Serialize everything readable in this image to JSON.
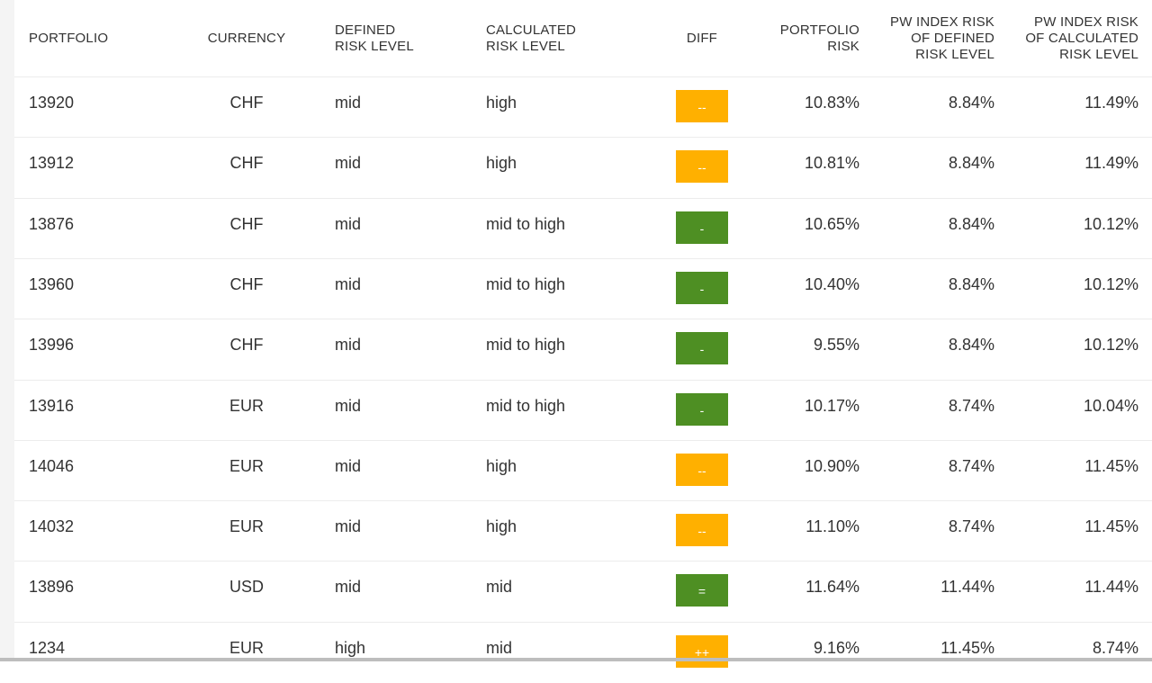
{
  "table": {
    "headers": [
      [
        "PORTFOLIO"
      ],
      [
        "CURRENCY"
      ],
      [
        "DEFINED",
        "RISK LEVEL"
      ],
      [
        "CALCULATED",
        "RISK LEVEL"
      ],
      [
        "DIFF"
      ],
      [
        "PORTFOLIO",
        "RISK"
      ],
      [
        "PW INDEX RISK",
        "OF DEFINED",
        "RISK LEVEL"
      ],
      [
        "PW INDEX RISK",
        "OF CALCULATED",
        "RISK LEVEL"
      ]
    ],
    "rows": [
      [
        "13920",
        "CHF",
        "mid",
        "high",
        {
          "label": "--",
          "color": "#ffb000"
        },
        "10.83%",
        "8.84%",
        "11.49%"
      ],
      [
        "13912",
        "CHF",
        "mid",
        "high",
        {
          "label": "--",
          "color": "#ffb000"
        },
        "10.81%",
        "8.84%",
        "11.49%"
      ],
      [
        "13876",
        "CHF",
        "mid",
        "mid to high",
        {
          "label": "-",
          "color": "#4e8f23"
        },
        "10.65%",
        "8.84%",
        "10.12%"
      ],
      [
        "13960",
        "CHF",
        "mid",
        "mid to high",
        {
          "label": "-",
          "color": "#4e8f23"
        },
        "10.40%",
        "8.84%",
        "10.12%"
      ],
      [
        "13996",
        "CHF",
        "mid",
        "mid to high",
        {
          "label": "-",
          "color": "#4e8f23"
        },
        "9.55%",
        "8.84%",
        "10.12%"
      ],
      [
        "13916",
        "EUR",
        "mid",
        "mid to high",
        {
          "label": "-",
          "color": "#4e8f23"
        },
        "10.17%",
        "8.74%",
        "10.04%"
      ],
      [
        "14046",
        "EUR",
        "mid",
        "high",
        {
          "label": "--",
          "color": "#ffb000"
        },
        "10.90%",
        "8.74%",
        "11.45%"
      ],
      [
        "14032",
        "EUR",
        "mid",
        "high",
        {
          "label": "--",
          "color": "#ffb000"
        },
        "11.10%",
        "8.74%",
        "11.45%"
      ],
      [
        "13896",
        "USD",
        "mid",
        "mid",
        {
          "label": "=",
          "color": "#4e8f23"
        },
        "11.64%",
        "11.44%",
        "11.44%"
      ],
      [
        "1234",
        "EUR",
        "high",
        "mid",
        {
          "label": "++",
          "color": "#ffb000"
        },
        "9.16%",
        "11.45%",
        "8.74%"
      ]
    ]
  }
}
